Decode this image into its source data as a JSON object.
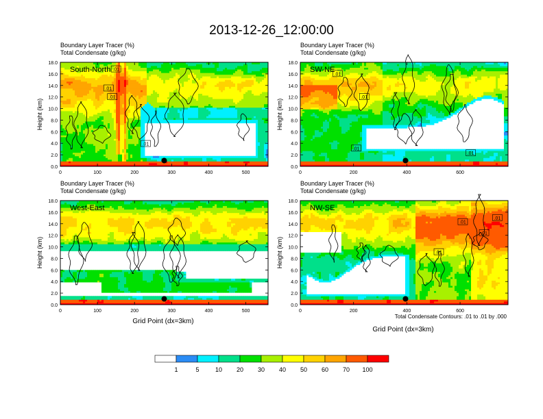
{
  "title": "2013-12-26_12:00:00",
  "panel_label_line1": "Boundary Layer Tracer   (%)",
  "panel_label_line2": "Total Condensate   (g/kg)",
  "ylabel": "Height (km)",
  "xlabel": "Grid Point (dx=3km)",
  "contour_note": "Total Condensate Contours: .01 to .01 by .000",
  "contour_label": ".01",
  "colors": {
    "levels": [
      "#ffffff",
      "#2b8cf5",
      "#00f0ff",
      "#00e08a",
      "#00e000",
      "#a8f000",
      "#ffff00",
      "#ffd200",
      "#ffa500",
      "#ff5a00",
      "#ff0000"
    ],
    "contour": "#000000",
    "marker": "#000000"
  },
  "chart_data": [
    {
      "type": "heatmap",
      "name": "South-North",
      "xlim": [
        0,
        560
      ],
      "xticks": [
        0,
        100,
        200,
        300,
        400,
        500
      ],
      "ylim": [
        0,
        18
      ],
      "yticks": [
        "0.0",
        "2.0",
        "4.0",
        "6.0",
        "8.0",
        "10.0",
        "12.0",
        "14.0",
        "16.0",
        "18.0"
      ],
      "marker": {
        "x": 280,
        "y": 1.0
      },
      "contour_labels": [
        {
          "x": 150,
          "y": 16.8
        },
        {
          "x": 130,
          "y": 13.5
        },
        {
          "x": 140,
          "y": 12.0
        },
        {
          "x": 230,
          "y": 3.9
        }
      ]
    },
    {
      "type": "heatmap",
      "name": "SW-NE",
      "xlim": [
        0,
        780
      ],
      "xticks": [
        0,
        200,
        400,
        600
      ],
      "ylim": [
        0,
        18
      ],
      "yticks": [
        "0.0",
        "2.0",
        "4.0",
        "6.0",
        "8.0",
        "10.0",
        "12.0",
        "14.0",
        "16.0",
        "18.0"
      ],
      "marker": {
        "x": 395,
        "y": 1.0
      },
      "contour_labels": [
        {
          "x": 140,
          "y": 16.0
        },
        {
          "x": 240,
          "y": 12.0
        },
        {
          "x": 210,
          "y": 3.1
        },
        {
          "x": 640,
          "y": 2.3
        }
      ]
    },
    {
      "type": "heatmap",
      "name": "West-East",
      "xlim": [
        0,
        560
      ],
      "xticks": [
        0,
        100,
        200,
        300,
        400,
        500
      ],
      "ylim": [
        0,
        18
      ],
      "yticks": [
        "0.0",
        "2.0",
        "4.0",
        "6.0",
        "8.0",
        "10.0",
        "12.0",
        "14.0",
        "16.0",
        "18.0"
      ],
      "marker": {
        "x": 280,
        "y": 1.0
      },
      "contour_labels": []
    },
    {
      "type": "heatmap",
      "name": "NW-SE",
      "xlim": [
        0,
        780
      ],
      "xticks": [
        0,
        200,
        400,
        600
      ],
      "ylim": [
        0,
        18
      ],
      "yticks": [
        "0.0",
        "2.0",
        "4.0",
        "6.0",
        "8.0",
        "10.0",
        "12.0",
        "14.0",
        "16.0",
        "18.0"
      ],
      "marker": {
        "x": 395,
        "y": 1.0
      },
      "contour_labels": [
        {
          "x": 610,
          "y": 14.3
        },
        {
          "x": 690,
          "y": 12.4
        },
        {
          "x": 520,
          "y": 9.1
        },
        {
          "x": 740,
          "y": 15.0
        }
      ]
    }
  ],
  "colorbar": {
    "labels": [
      "1",
      "5",
      "10",
      "20",
      "30",
      "40",
      "50",
      "60",
      "70",
      "100"
    ]
  }
}
